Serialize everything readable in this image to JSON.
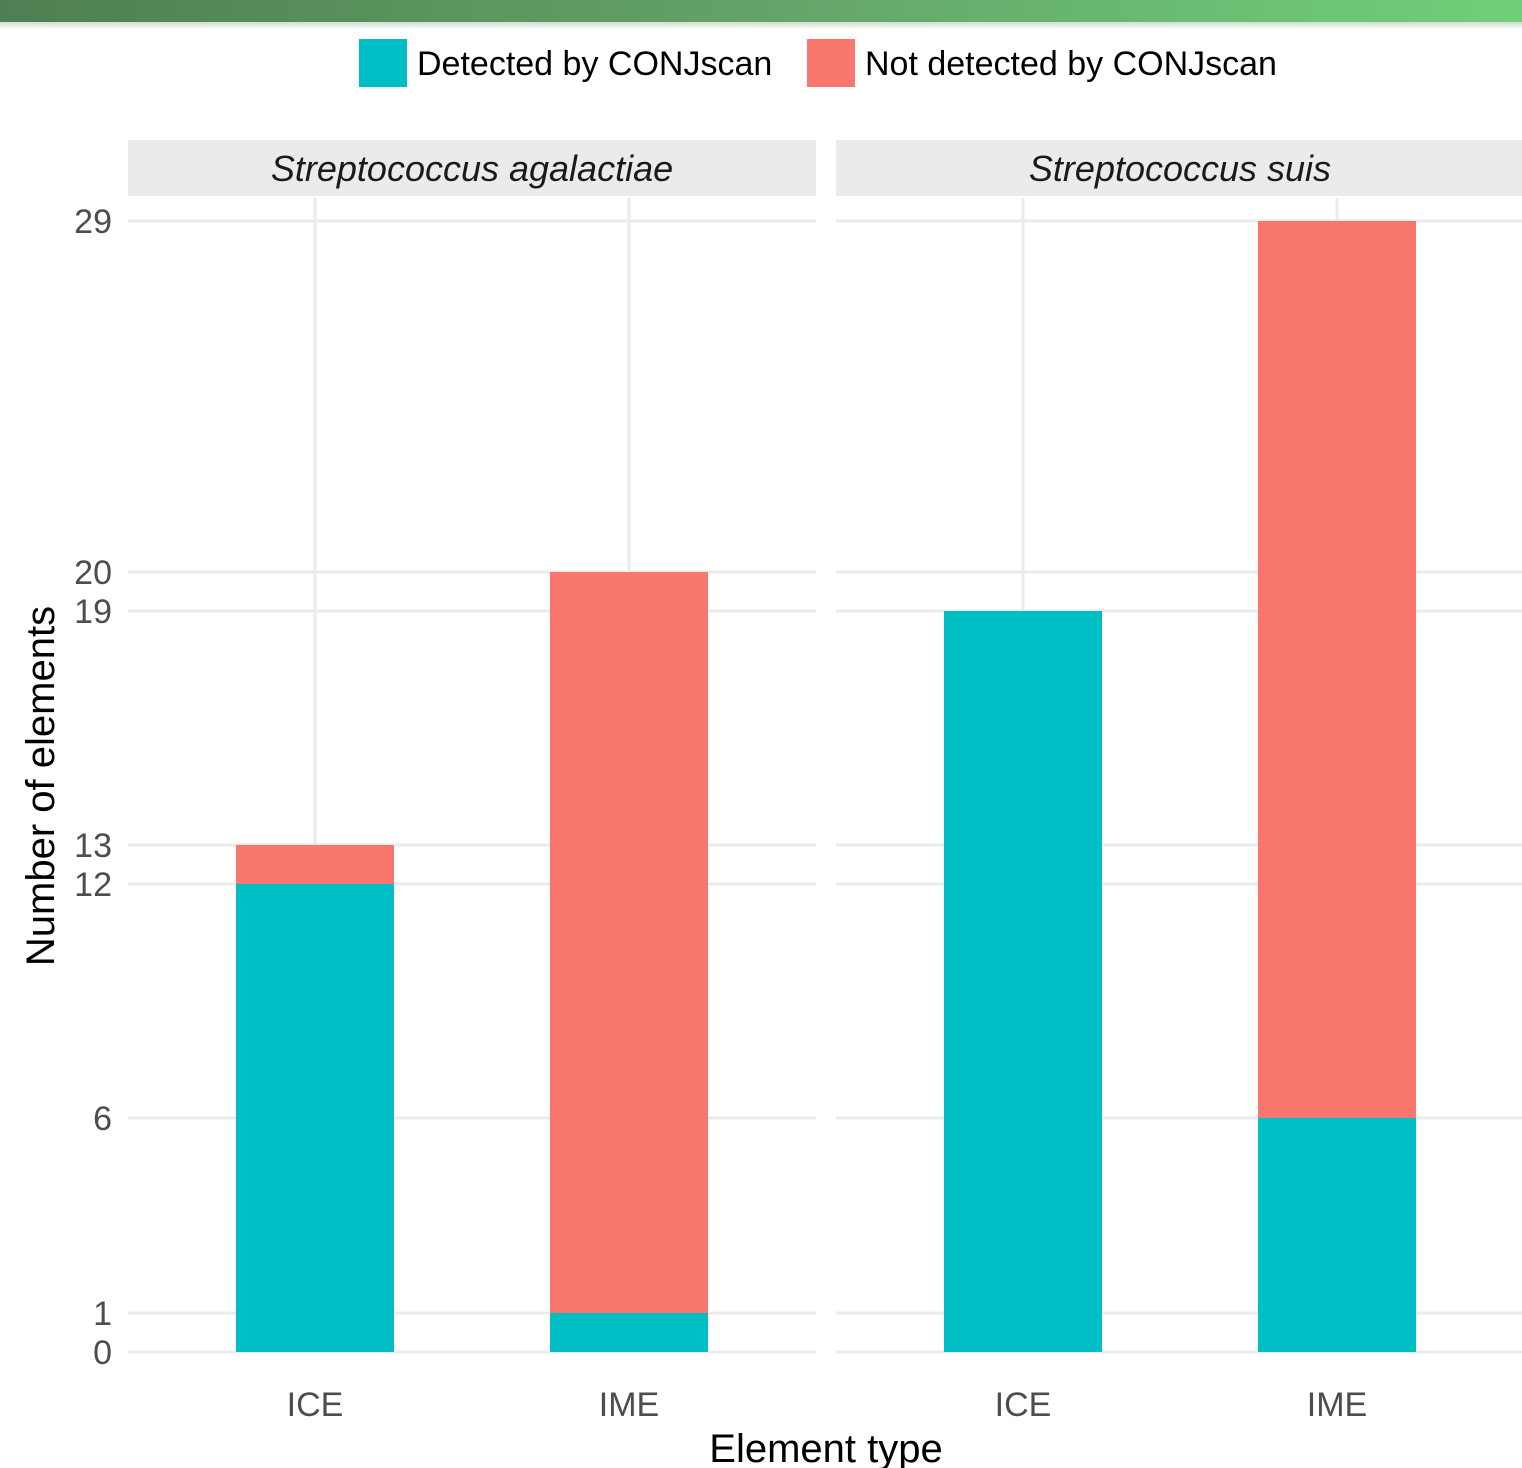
{
  "chart_data": {
    "type": "bar",
    "stacked": true,
    "xlabel": "Element type",
    "ylabel": "Number of elements",
    "ylim": [
      0,
      29
    ],
    "y_breaks": [
      0,
      1,
      6,
      12,
      13,
      19,
      20,
      29
    ],
    "grid": true,
    "legend_position": "top",
    "categories": [
      "ICE",
      "IME"
    ],
    "series": [
      {
        "name": "Detected by CONJscan",
        "color": "#00BFC4"
      },
      {
        "name": "Not detected by CONJscan",
        "color": "#F8766D"
      }
    ],
    "panels": [
      {
        "title": "Streptococcus agalactiae",
        "values": {
          "Detected by CONJscan": [
            12,
            1
          ],
          "Not detected by CONJscan": [
            1,
            19
          ]
        }
      },
      {
        "title": "Streptococcus suis",
        "values": {
          "Detected by CONJscan": [
            19,
            6
          ],
          "Not detected by CONJscan": [
            0,
            23
          ]
        }
      }
    ]
  }
}
